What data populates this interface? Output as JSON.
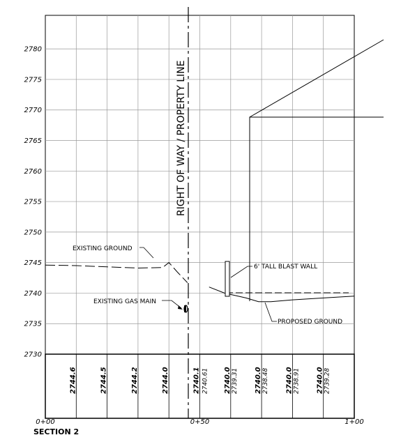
{
  "title": "SECTION 2",
  "row_label": "RIGHT OF WAY / PROPERTY LINE",
  "elevation_ticks": [
    "2780",
    "2775",
    "2770",
    "2765",
    "2760",
    "2755",
    "2750",
    "2745",
    "2740",
    "2735",
    "2730"
  ],
  "stations": [
    "0+00",
    "0+50",
    "1+00"
  ],
  "existing_elevations": [
    "2744.6",
    "2744.5",
    "2744.2",
    "2744.0",
    "2740.1"
  ],
  "paired_elevations": [
    {
      "top": "2740.0",
      "bottom": "2739.31"
    },
    {
      "top": "2740.0",
      "bottom": "2738.48"
    },
    {
      "top": "2740.0",
      "bottom": "2738.91"
    },
    {
      "top": "2740.0",
      "bottom": "2739.28"
    }
  ],
  "row_bottom_label": "2740.61",
  "labels": {
    "existing_ground": "EXISTING GROUND",
    "existing_gas_main": "EXISTING GAS MAIN",
    "blast_wall": "6' TALL BLAST WALL",
    "proposed_ground": "PROPOSED GROUND"
  },
  "chart_data": {
    "type": "line",
    "title": "SECTION 2",
    "xlabel": "",
    "ylabel": "",
    "xlim": [
      0,
      100
    ],
    "ylim": [
      2730,
      2785
    ],
    "series": [
      {
        "name": "EXISTING GROUND",
        "x": [
          0,
          10,
          20,
          30,
          38,
          40,
          43,
          46
        ],
        "y": [
          2744.6,
          2744.5,
          2744.3,
          2744.1,
          2744.2,
          2745.0,
          2743.3,
          2741.7
        ]
      },
      {
        "name": "PROPOSED GROUND",
        "x": [
          53,
          58,
          65,
          69,
          73,
          80,
          90,
          100
        ],
        "y": [
          2741.0,
          2740.0,
          2739.2,
          2738.6,
          2738.6,
          2738.9,
          2739.2,
          2739.5
        ]
      }
    ]
  }
}
